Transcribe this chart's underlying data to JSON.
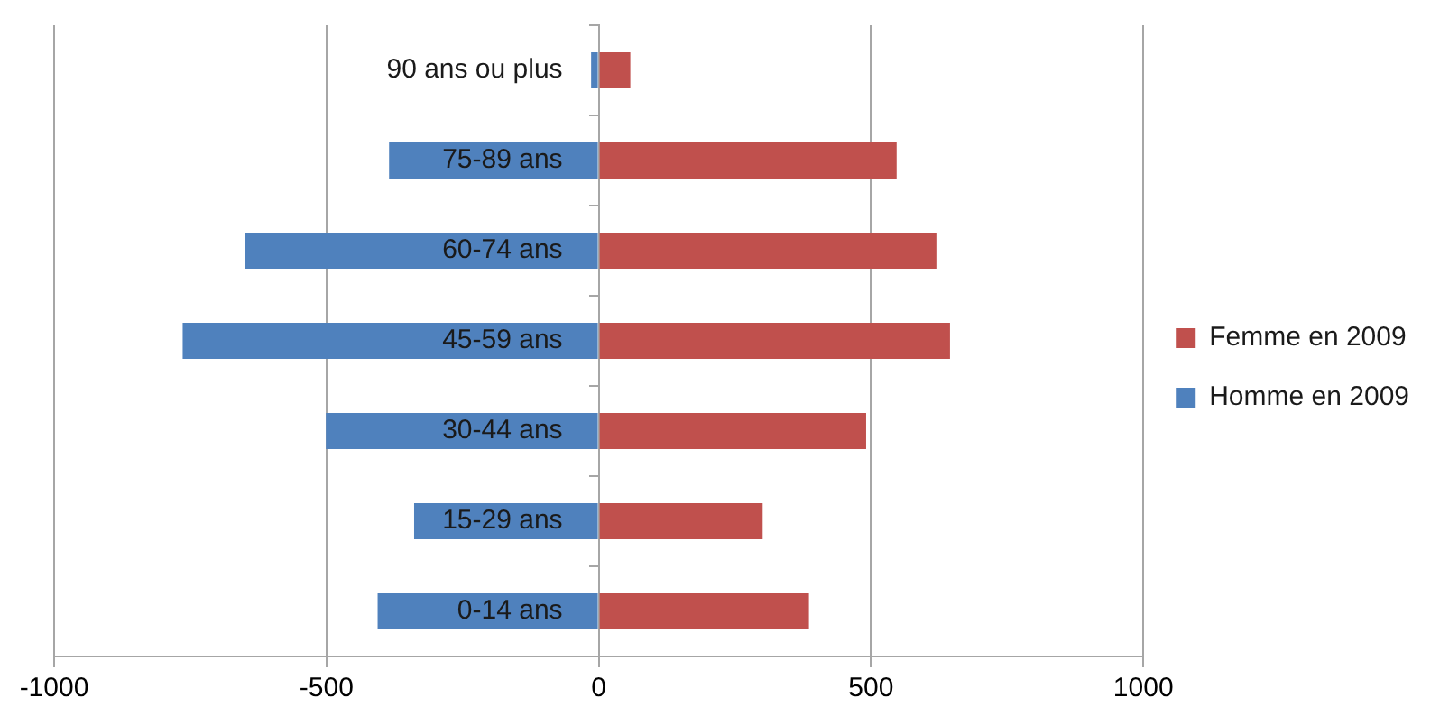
{
  "chart_data": {
    "type": "bar",
    "orientation": "horizontal",
    "stacked": true,
    "categories": [
      "90 ans ou plus",
      "75-89 ans",
      "60-74 ans",
      "45-59 ans",
      "30-44 ans",
      "15-29 ans",
      "0-14 ans"
    ],
    "series": [
      {
        "name": "Femme en 2009",
        "color": "#c0504d",
        "values": [
          58,
          547,
          620,
          645,
          491,
          301,
          386
        ]
      },
      {
        "name": "Homme en 2009",
        "color": "#4f81bd",
        "values": [
          -14,
          -385,
          -649,
          -764,
          -501,
          -339,
          -406
        ]
      }
    ],
    "xlim": [
      -1000,
      1000
    ],
    "xticks": [
      -1000,
      -500,
      0,
      500,
      1000
    ],
    "grid": "x",
    "legend": "right"
  }
}
